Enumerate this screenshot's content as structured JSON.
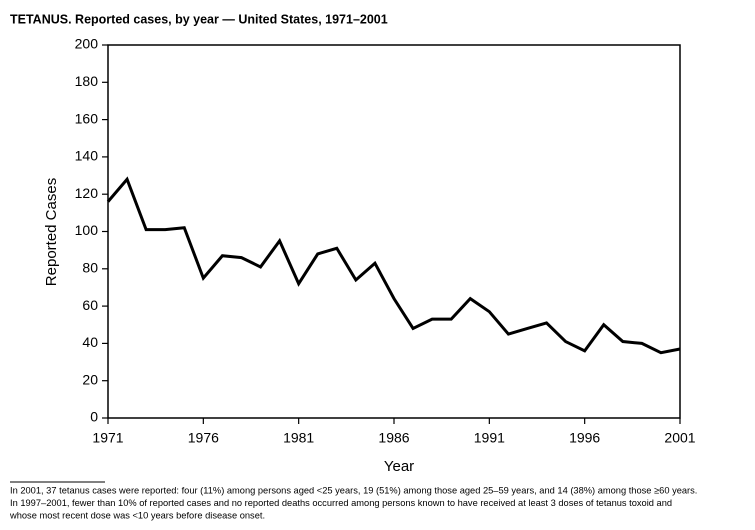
{
  "chart_data": {
    "type": "line",
    "title": "TETANUS. Reported cases, by year — United States, 1971–2001",
    "x_label": "Year",
    "y_label": "Reported Cases",
    "x": [
      1971,
      1972,
      1973,
      1974,
      1975,
      1976,
      1977,
      1978,
      1979,
      1980,
      1981,
      1982,
      1983,
      1984,
      1985,
      1986,
      1987,
      1988,
      1989,
      1990,
      1991,
      1992,
      1993,
      1994,
      1995,
      1996,
      1997,
      1998,
      1999,
      2000,
      2001
    ],
    "series": [
      {
        "name": "Reported cases",
        "color": "#000000",
        "values": [
          116,
          128,
          101,
          101,
          102,
          75,
          87,
          86,
          81,
          95,
          72,
          88,
          91,
          74,
          83,
          64,
          48,
          53,
          53,
          64,
          57,
          45,
          48,
          51,
          41,
          36,
          50,
          41,
          40,
          35,
          37
        ]
      }
    ],
    "xlim": [
      1971,
      2001
    ],
    "xticks": [
      1971,
      1976,
      1981,
      1986,
      1991,
      1996,
      2001
    ],
    "ylim": [
      0,
      200
    ],
    "yticks": [
      0,
      20,
      40,
      60,
      80,
      100,
      120,
      140,
      160,
      180,
      200
    ],
    "footnote": [
      "In 2001, 37 tetanus cases were reported: four (11%) among persons aged <25 years, 19 (51%) among those aged 25–59 years, and 14 (38%) among those ≥60 years.",
      "In 1997–2001, fewer than 10% of reported cases and no reported deaths occurred among persons known to have received at least 3 doses of tetanus toxoid and",
      "whose most recent dose was <10 years before disease onset."
    ]
  }
}
